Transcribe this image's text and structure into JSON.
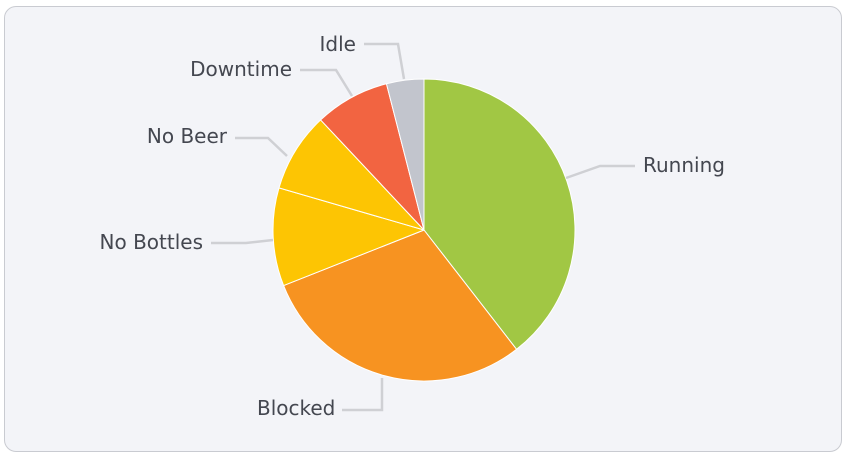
{
  "chart_data": {
    "type": "pie",
    "title": "",
    "slices": [
      {
        "label": "Running",
        "value": 39.5,
        "color": "#a1c744"
      },
      {
        "label": "Blocked",
        "value": 29.5,
        "color": "#f79321"
      },
      {
        "label": "No Bottles",
        "value": 10.5,
        "color": "#fdc503"
      },
      {
        "label": "No Beer",
        "value": 8.5,
        "color": "#fdc503"
      },
      {
        "label": "Downtime",
        "value": 8.0,
        "color": "#f26441"
      },
      {
        "label": "Idle",
        "value": 4.0,
        "color": "#c2c5cd"
      }
    ]
  }
}
